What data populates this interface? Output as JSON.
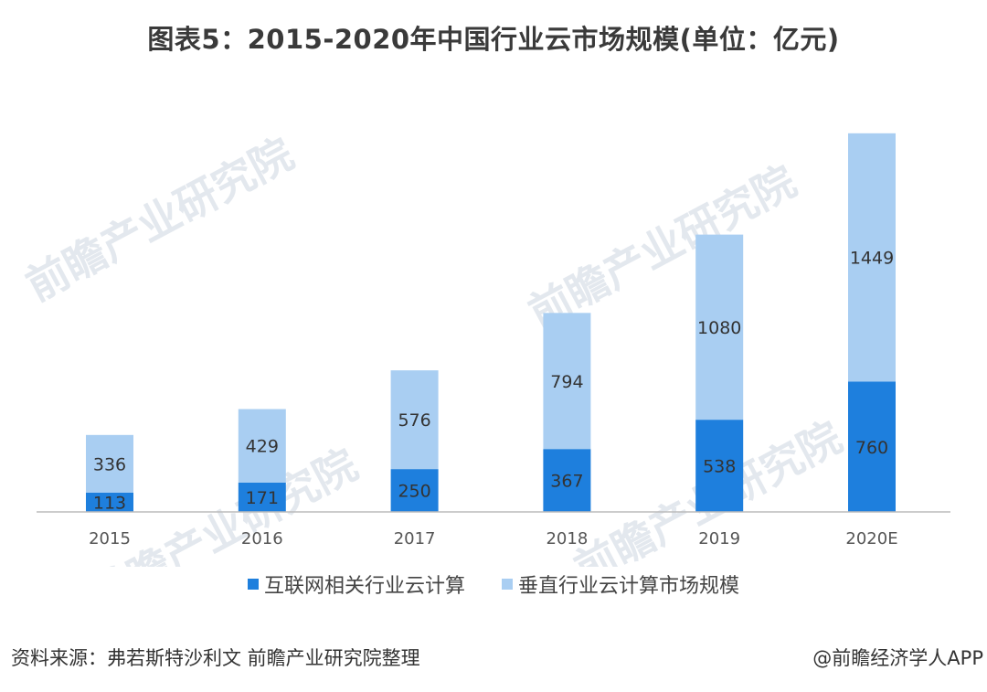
{
  "title": "图表5：2015-2020年中国行业云市场规模(单位：亿元)",
  "colors": {
    "series_internet": "#1e7fdd",
    "series_vertical": "#a9cef2",
    "axis": "#bbbbbb",
    "watermark": "#e3e8ee"
  },
  "watermark_text": "前瞻产业研究院",
  "chart_data": {
    "type": "bar",
    "stacked": true,
    "categories": [
      "2015",
      "2016",
      "2017",
      "2018",
      "2019",
      "2020E"
    ],
    "series": [
      {
        "name": "互联网相关行业云计算",
        "values": [
          113,
          171,
          250,
          367,
          538,
          760
        ]
      },
      {
        "name": "垂直行业云计算市场规模",
        "values": [
          336,
          429,
          576,
          794,
          1080,
          1449
        ]
      }
    ],
    "title": "图表5：2015-2020年中国行业云市场规模(单位：亿元)",
    "xlabel": "",
    "ylabel": "",
    "legend": "bottom",
    "grid": false
  },
  "footer": {
    "source": "资料来源：弗若斯特沙利文 前瞻产业研究院整理",
    "credit": "@前瞻经济学人APP"
  }
}
